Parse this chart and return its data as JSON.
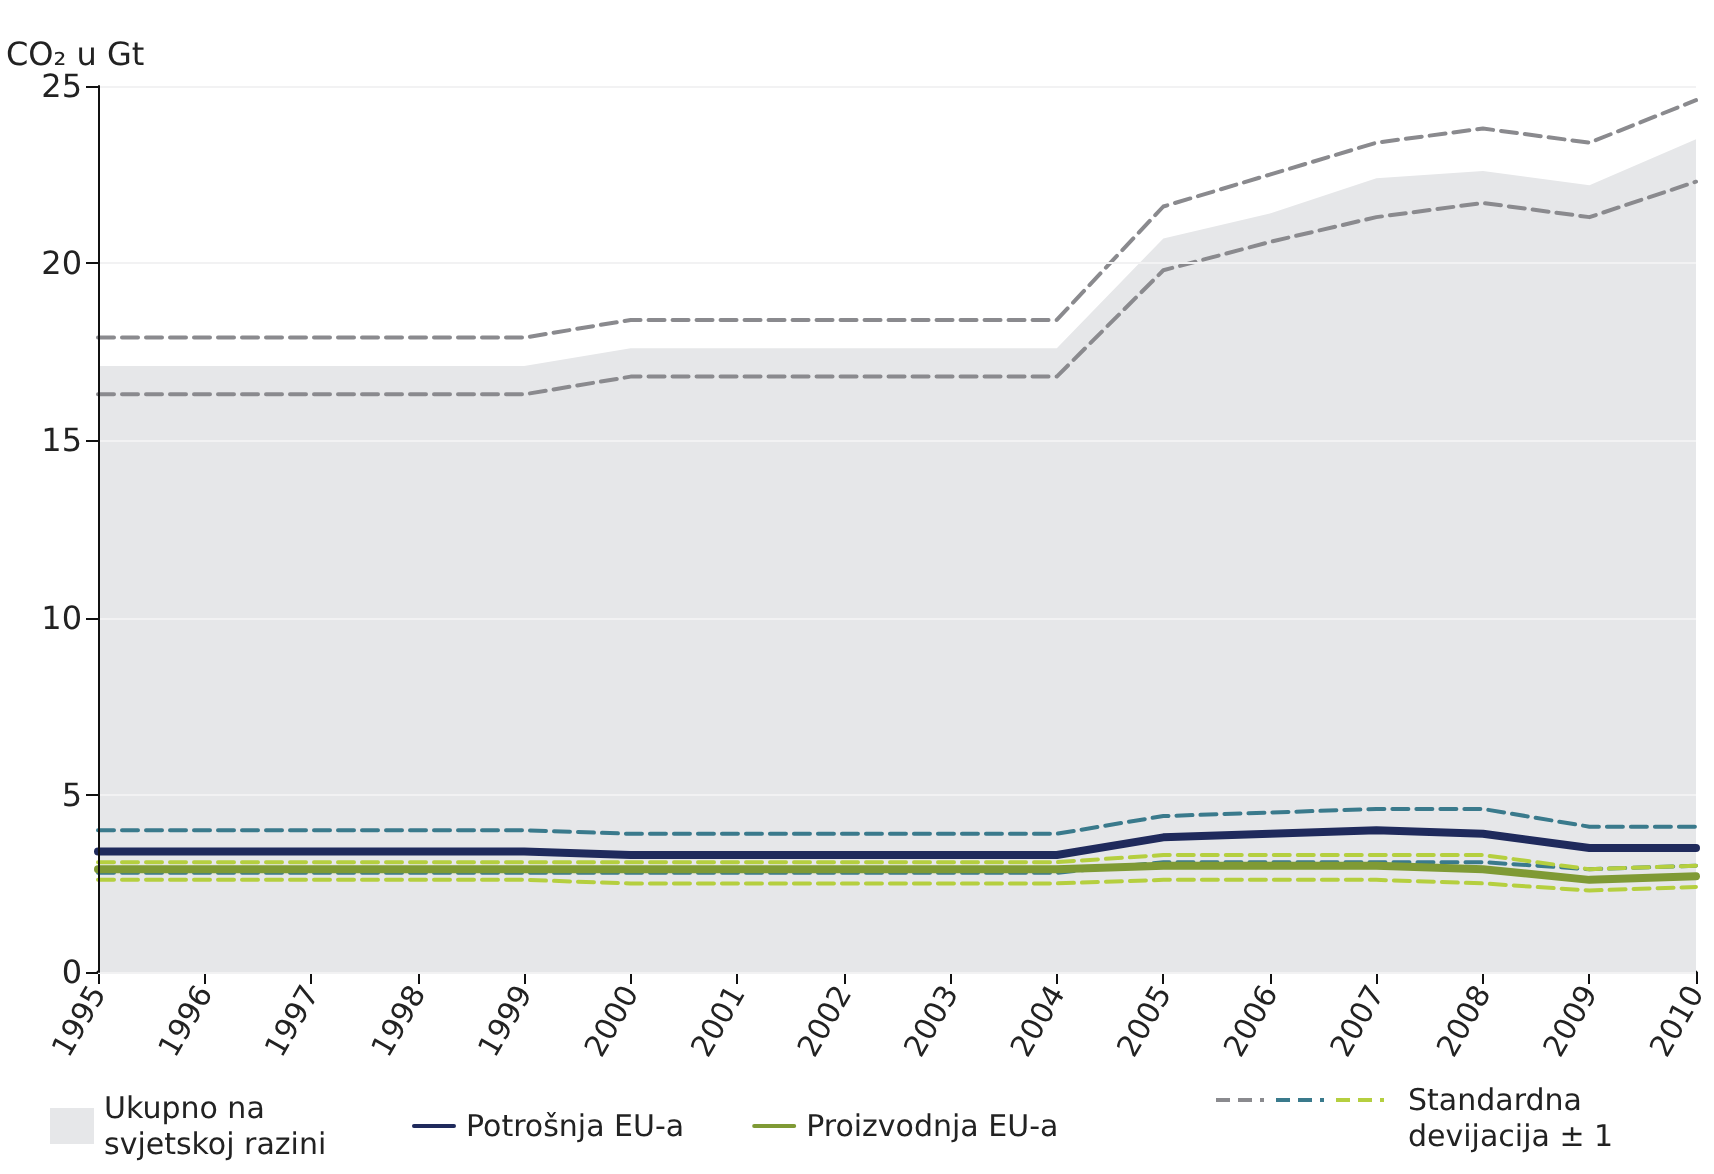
{
  "chart_data": {
    "type": "line",
    "ylabel": "CO₂ u Gt",
    "categories": [
      "1995",
      "1996",
      "1997",
      "1998",
      "1999",
      "2000",
      "2001",
      "2002",
      "2003",
      "2004",
      "2005",
      "2006",
      "2007",
      "2008",
      "2009",
      "2010"
    ],
    "ylim": [
      0,
      25
    ],
    "yticks": [
      0,
      5,
      10,
      15,
      20,
      25
    ],
    "grid": "y",
    "legend": "bottom",
    "marker": "none",
    "series": [
      {
        "name": "Ukupno na svjetskoj razini",
        "type": "area",
        "color": "#e6e7e9",
        "values": [
          17.1,
          17.1,
          17.1,
          17.1,
          17.1,
          17.6,
          17.6,
          17.6,
          17.6,
          17.6,
          20.7,
          21.4,
          22.4,
          22.6,
          22.2,
          23.5
        ]
      },
      {
        "color": "#8a8a8e",
        "line_style": "dashed",
        "values": [
          17.9,
          17.9,
          17.9,
          17.9,
          17.9,
          18.4,
          18.4,
          18.4,
          18.4,
          18.4,
          21.6,
          22.5,
          23.4,
          23.8,
          23.4,
          24.6
        ]
      },
      {
        "color": "#8a8a8e",
        "line_style": "dashed",
        "values": [
          16.3,
          16.3,
          16.3,
          16.3,
          16.3,
          16.8,
          16.8,
          16.8,
          16.8,
          16.8,
          19.8,
          20.6,
          21.3,
          21.7,
          21.3,
          22.3
        ]
      },
      {
        "color": "#3a7a8c",
        "line_style": "dashed",
        "values": [
          4.0,
          4.0,
          4.0,
          4.0,
          4.0,
          3.9,
          3.9,
          3.9,
          3.9,
          3.9,
          4.4,
          4.5,
          4.6,
          4.6,
          4.1,
          4.1
        ]
      },
      {
        "color": "#3a7a8c",
        "line_style": "dashed",
        "values": [
          2.8,
          2.8,
          2.8,
          2.8,
          2.8,
          2.8,
          2.8,
          2.8,
          2.8,
          2.8,
          3.1,
          3.1,
          3.1,
          3.1,
          2.9,
          3.0
        ]
      },
      {
        "color": "#b5cf3f",
        "line_style": "dashed",
        "values": [
          3.1,
          3.1,
          3.1,
          3.1,
          3.1,
          3.1,
          3.1,
          3.1,
          3.1,
          3.1,
          3.3,
          3.3,
          3.3,
          3.3,
          2.9,
          3.0
        ]
      },
      {
        "color": "#b5cf3f",
        "line_style": "dashed",
        "values": [
          2.6,
          2.6,
          2.6,
          2.6,
          2.6,
          2.5,
          2.5,
          2.5,
          2.5,
          2.5,
          2.6,
          2.6,
          2.6,
          2.5,
          2.3,
          2.4
        ]
      },
      {
        "name": "Potrošnja EU-a",
        "color": "#1f2a5c",
        "line_style": "solid",
        "values": [
          3.4,
          3.4,
          3.4,
          3.4,
          3.4,
          3.3,
          3.3,
          3.3,
          3.3,
          3.3,
          3.8,
          3.9,
          4.0,
          3.9,
          3.5,
          3.5
        ]
      },
      {
        "name": "Proizvodnja EU-a",
        "color": "#7f9a35",
        "line_style": "solid",
        "values": [
          2.9,
          2.9,
          2.9,
          2.9,
          2.9,
          2.9,
          2.9,
          2.9,
          2.9,
          2.9,
          3.0,
          3.0,
          3.0,
          2.9,
          2.6,
          2.7
        ]
      }
    ],
    "annotations": [
      "Standardna devijacija ± 1"
    ]
  }
}
